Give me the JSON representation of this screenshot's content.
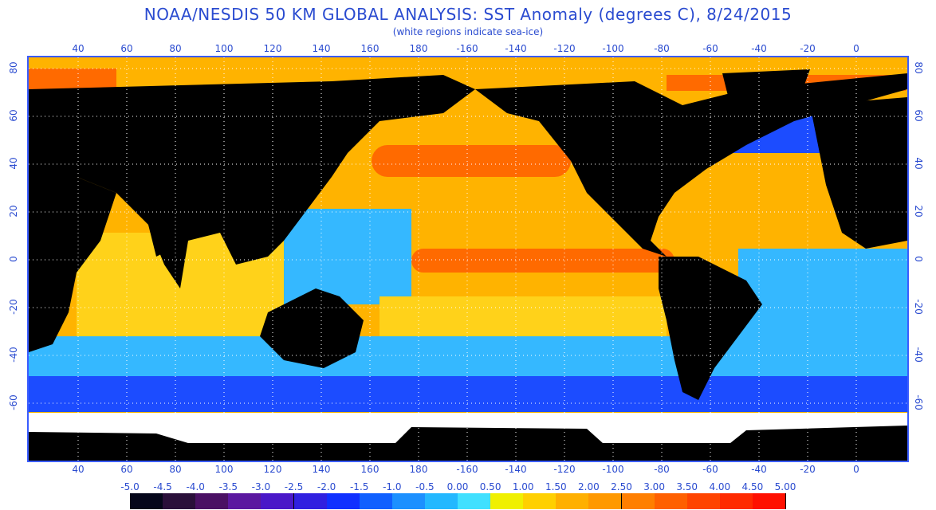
{
  "header": {
    "title": "NOAA/NESDIS 50 KM GLOBAL ANALYSIS: SST Anomaly (degrees C), 8/24/2015",
    "subtitle": "(white regions indicate sea-ice)"
  },
  "axes": {
    "longitude_labels": [
      "40",
      "60",
      "80",
      "100",
      "120",
      "140",
      "160",
      "180",
      "-160",
      "-140",
      "-120",
      "-100",
      "-80",
      "-60",
      "-40",
      "-20",
      "0"
    ],
    "latitude_labels": [
      "80",
      "60",
      "40",
      "20",
      "0",
      "-20",
      "-40",
      "-60"
    ]
  },
  "legend": {
    "labels": [
      "-5.0",
      "-4.5",
      "-4.0",
      "-3.5",
      "-3.0",
      "-2.5",
      "-2.0",
      "-1.5",
      "-1.0",
      "-0.5",
      "0.00",
      "0.50",
      "1.00",
      "1.50",
      "2.00",
      "2.50",
      "3.00",
      "3.50",
      "4.00",
      "4.50",
      "5.00"
    ],
    "colors": [
      "#05061a",
      "#2a0f3a",
      "#4a1064",
      "#5b18a0",
      "#4a18c8",
      "#3020e0",
      "#1030ff",
      "#1060ff",
      "#1c90ff",
      "#23b8ff",
      "#40e0ff",
      "#f0f000",
      "#ffd000",
      "#ffb000",
      "#ff9900",
      "#ff7f00",
      "#ff6000",
      "#ff4400",
      "#ff2a00",
      "#ff1000"
    ]
  },
  "map_colors": {
    "land": "#000000",
    "ice": "#ffffff",
    "warm": "#ffb300",
    "hot": "#ff6a00",
    "mild": "#ffd21a",
    "cool": "#35b8ff",
    "cold": "#1c4cff",
    "grid": "#ffffff"
  }
}
